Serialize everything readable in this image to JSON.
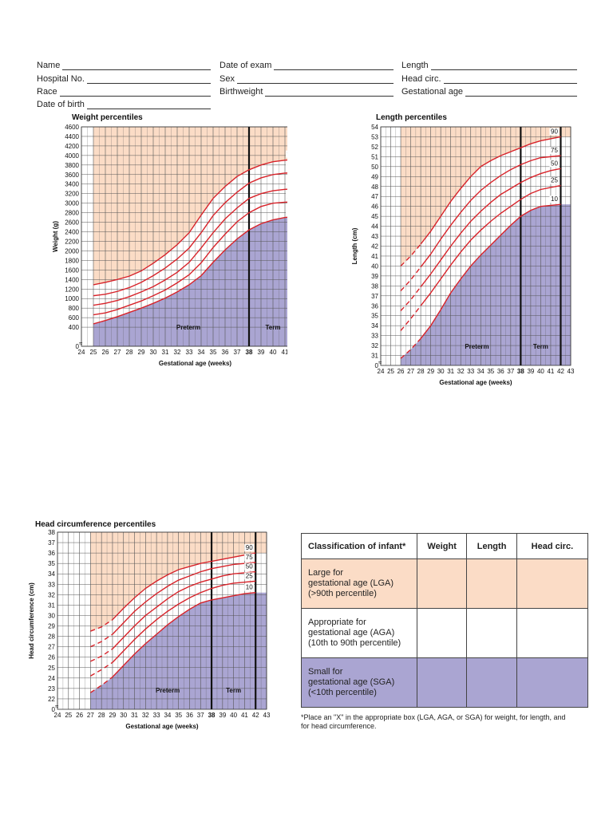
{
  "form": {
    "name": "Name",
    "hospital_no": "Hospital No.",
    "race": "Race",
    "date_of_birth": "Date of birth",
    "date_of_exam": "Date of exam",
    "sex": "Sex",
    "birthweight": "Birthweight",
    "length": "Length",
    "head_circ": "Head circ.",
    "gestational_age": "Gestational age"
  },
  "colors": {
    "lga": "#fbdcc6",
    "sga": "#aaa5d2",
    "curve": "#d8232a",
    "grid": "#555555"
  },
  "chart_data": [
    {
      "type": "line",
      "title": "Weight percentiles",
      "xlabel": "Gestational age (weeks)",
      "ylabel": "Weight (g)",
      "xlim": [
        24,
        43
      ],
      "ylim": [
        0,
        4600
      ],
      "xticks": [
        24,
        25,
        26,
        27,
        28,
        29,
        30,
        31,
        32,
        33,
        34,
        35,
        36,
        37,
        38,
        39,
        40,
        41,
        42,
        43
      ],
      "yticks": [
        0,
        400,
        600,
        800,
        1000,
        1200,
        1400,
        1600,
        1800,
        2000,
        2200,
        2400,
        2600,
        2800,
        3000,
        3200,
        3400,
        3600,
        3800,
        4000,
        4200,
        4400,
        4600
      ],
      "bold_x_tick": 38,
      "term_lines": [
        38,
        42
      ],
      "region_labels": {
        "preterm": "Preterm",
        "term": "Term"
      },
      "curve_start": 25,
      "series": [
        {
          "name": "90",
          "x": [
            25,
            26,
            27,
            28,
            29,
            30,
            31,
            32,
            33,
            34,
            35,
            36,
            37,
            38,
            39,
            40,
            41,
            42
          ],
          "values": [
            1290,
            1340,
            1400,
            1470,
            1580,
            1740,
            1920,
            2130,
            2380,
            2750,
            3100,
            3350,
            3560,
            3700,
            3800,
            3870,
            3900,
            3920
          ]
        },
        {
          "name": "75",
          "x": [
            25,
            26,
            27,
            28,
            29,
            30,
            31,
            32,
            33,
            34,
            35,
            36,
            37,
            38,
            39,
            40,
            41,
            42
          ],
          "values": [
            1060,
            1090,
            1150,
            1230,
            1340,
            1480,
            1640,
            1830,
            2060,
            2380,
            2740,
            3010,
            3230,
            3420,
            3530,
            3600,
            3630,
            3640
          ]
        },
        {
          "name": "50",
          "x": [
            25,
            26,
            27,
            28,
            29,
            30,
            31,
            32,
            33,
            34,
            35,
            36,
            37,
            38,
            39,
            40,
            41,
            42
          ],
          "values": [
            860,
            900,
            960,
            1040,
            1140,
            1250,
            1390,
            1550,
            1760,
            2060,
            2380,
            2670,
            2900,
            3100,
            3200,
            3260,
            3290,
            3300
          ]
        },
        {
          "name": "25",
          "x": [
            25,
            26,
            27,
            28,
            29,
            30,
            31,
            32,
            33,
            34,
            35,
            36,
            37,
            38,
            39,
            40,
            41,
            42
          ],
          "values": [
            660,
            700,
            770,
            860,
            950,
            1060,
            1180,
            1330,
            1500,
            1750,
            2070,
            2350,
            2610,
            2800,
            2930,
            3000,
            3020,
            3030
          ]
        },
        {
          "name": "10",
          "x": [
            25,
            26,
            27,
            28,
            29,
            30,
            31,
            32,
            33,
            34,
            35,
            36,
            37,
            38,
            39,
            40,
            41,
            42
          ],
          "values": [
            470,
            540,
            620,
            710,
            800,
            900,
            1010,
            1140,
            1290,
            1480,
            1760,
            2020,
            2250,
            2440,
            2570,
            2650,
            2700,
            2720
          ]
        }
      ]
    },
    {
      "type": "line",
      "title": "Length percentiles",
      "xlabel": "Gestational age (weeks)",
      "ylabel": "Length (cm)",
      "xlim": [
        24,
        43
      ],
      "ylim": [
        30,
        54
      ],
      "axis_break_label": "0",
      "xticks": [
        24,
        25,
        26,
        27,
        28,
        29,
        30,
        31,
        32,
        33,
        34,
        35,
        36,
        37,
        38,
        39,
        40,
        41,
        42,
        43
      ],
      "yticks": [
        31,
        32,
        33,
        34,
        35,
        36,
        37,
        38,
        39,
        40,
        41,
        42,
        43,
        44,
        45,
        46,
        47,
        48,
        49,
        50,
        51,
        52,
        53,
        54
      ],
      "bold_x_tick": 38,
      "term_lines": [
        38,
        42
      ],
      "region_labels": {
        "preterm": "Preterm",
        "term": "Term"
      },
      "curve_start": 26,
      "dashed_until": 28,
      "series": [
        {
          "name": "90",
          "x": [
            26,
            27,
            28,
            29,
            30,
            31,
            32,
            33,
            34,
            35,
            36,
            37,
            38,
            39,
            40,
            41,
            42
          ],
          "values": [
            40.0,
            41.0,
            42.2,
            43.5,
            45.0,
            46.5,
            47.8,
            49.0,
            50.0,
            50.6,
            51.1,
            51.5,
            51.9,
            52.3,
            52.6,
            52.8,
            53.0
          ]
        },
        {
          "name": "75",
          "x": [
            26,
            27,
            28,
            29,
            30,
            31,
            32,
            33,
            34,
            35,
            36,
            37,
            38,
            39,
            40,
            41,
            42
          ],
          "values": [
            37.5,
            38.6,
            39.9,
            41.2,
            42.7,
            44.1,
            45.4,
            46.6,
            47.6,
            48.4,
            49.1,
            49.7,
            50.2,
            50.6,
            50.9,
            51.0,
            51.1
          ]
        },
        {
          "name": "50",
          "x": [
            26,
            27,
            28,
            29,
            30,
            31,
            32,
            33,
            34,
            35,
            36,
            37,
            38,
            39,
            40,
            41,
            42
          ],
          "values": [
            35.5,
            36.6,
            37.9,
            39.2,
            40.6,
            42.0,
            43.3,
            44.5,
            45.5,
            46.4,
            47.2,
            47.8,
            48.4,
            48.9,
            49.3,
            49.6,
            49.8
          ]
        },
        {
          "name": "25",
          "x": [
            26,
            27,
            28,
            29,
            30,
            31,
            32,
            33,
            34,
            35,
            36,
            37,
            38,
            39,
            40,
            41,
            42
          ],
          "values": [
            33.5,
            34.7,
            36.0,
            37.3,
            38.7,
            40.1,
            41.4,
            42.6,
            43.6,
            44.5,
            45.3,
            46.0,
            46.7,
            47.3,
            47.7,
            47.9,
            48.1
          ]
        },
        {
          "name": "10",
          "x": [
            26,
            27,
            28,
            29,
            30,
            31,
            32,
            33,
            34,
            35,
            36,
            37,
            38,
            39,
            40,
            41,
            42
          ],
          "values": [
            30.7,
            31.6,
            32.7,
            34.0,
            35.6,
            37.3,
            38.7,
            40.0,
            41.1,
            42.1,
            43.1,
            44.1,
            45.0,
            45.6,
            46.0,
            46.1,
            46.2
          ]
        }
      ]
    },
    {
      "type": "line",
      "title": "Head circumference percentiles",
      "xlabel": "Gestational age (weeks)",
      "ylabel": "Head circumference (cm)",
      "xlim": [
        24,
        43
      ],
      "ylim": [
        21,
        38
      ],
      "axis_break_label": "0",
      "xticks": [
        24,
        25,
        26,
        27,
        28,
        29,
        30,
        31,
        32,
        33,
        34,
        35,
        36,
        37,
        38,
        39,
        40,
        41,
        42,
        43
      ],
      "yticks": [
        22,
        23,
        24,
        25,
        26,
        27,
        28,
        29,
        30,
        31,
        32,
        33,
        34,
        35,
        36,
        37,
        38
      ],
      "bold_x_tick": 38,
      "term_lines": [
        38,
        42
      ],
      "region_labels": {
        "preterm": "Preterm",
        "term": "Term"
      },
      "curve_start": 27,
      "dashed_until": 29,
      "series": [
        {
          "name": "90",
          "x": [
            27,
            28,
            29,
            30,
            31,
            32,
            33,
            34,
            35,
            36,
            37,
            38,
            39,
            40,
            41,
            42
          ],
          "values": [
            28.5,
            28.9,
            29.6,
            30.7,
            31.7,
            32.6,
            33.3,
            33.9,
            34.4,
            34.7,
            35.0,
            35.2,
            35.4,
            35.6,
            35.8,
            36.0
          ]
        },
        {
          "name": "75",
          "x": [
            27,
            28,
            29,
            30,
            31,
            32,
            33,
            34,
            35,
            36,
            37,
            38,
            39,
            40,
            41,
            42
          ],
          "values": [
            27.0,
            27.5,
            28.2,
            29.3,
            30.4,
            31.3,
            32.1,
            32.8,
            33.4,
            33.8,
            34.2,
            34.5,
            34.7,
            34.9,
            35.0,
            35.1
          ]
        },
        {
          "name": "50",
          "x": [
            27,
            28,
            29,
            30,
            31,
            32,
            33,
            34,
            35,
            36,
            37,
            38,
            39,
            40,
            41,
            42
          ],
          "values": [
            25.6,
            26.1,
            26.8,
            27.9,
            29.0,
            30.0,
            30.8,
            31.6,
            32.3,
            32.8,
            33.2,
            33.5,
            33.8,
            34.0,
            34.1,
            34.2
          ]
        },
        {
          "name": "25",
          "x": [
            27,
            28,
            29,
            30,
            31,
            32,
            33,
            34,
            35,
            36,
            37,
            38,
            39,
            40,
            41,
            42
          ],
          "values": [
            24.2,
            24.8,
            25.5,
            26.6,
            27.7,
            28.7,
            29.6,
            30.4,
            31.1,
            31.7,
            32.2,
            32.6,
            32.9,
            33.1,
            33.2,
            33.3
          ]
        },
        {
          "name": "10",
          "x": [
            27,
            28,
            29,
            30,
            31,
            32,
            33,
            34,
            35,
            36,
            37,
            38,
            39,
            40,
            41,
            42
          ],
          "values": [
            22.6,
            23.3,
            24.1,
            25.2,
            26.3,
            27.3,
            28.2,
            29.1,
            29.9,
            30.6,
            31.2,
            31.5,
            31.7,
            31.9,
            32.1,
            32.2
          ]
        }
      ]
    }
  ],
  "classification": {
    "header": [
      "Classification of infant*",
      "Weight",
      "Length",
      "Head circ."
    ],
    "rows": [
      {
        "label": [
          "Large for",
          "gestational age (LGA)",
          "(>90th percentile)"
        ]
      },
      {
        "label": [
          "Appropriate for",
          "gestational age (AGA)",
          "(10th to 90th percentile)"
        ]
      },
      {
        "label": [
          "Small for",
          "gestational age (SGA)",
          "(<10th percentile)"
        ]
      }
    ],
    "note": "*Place an \"X\" in the appropriate box (LGA, AGA, or SGA) for weight, for length, and for head circumference."
  }
}
